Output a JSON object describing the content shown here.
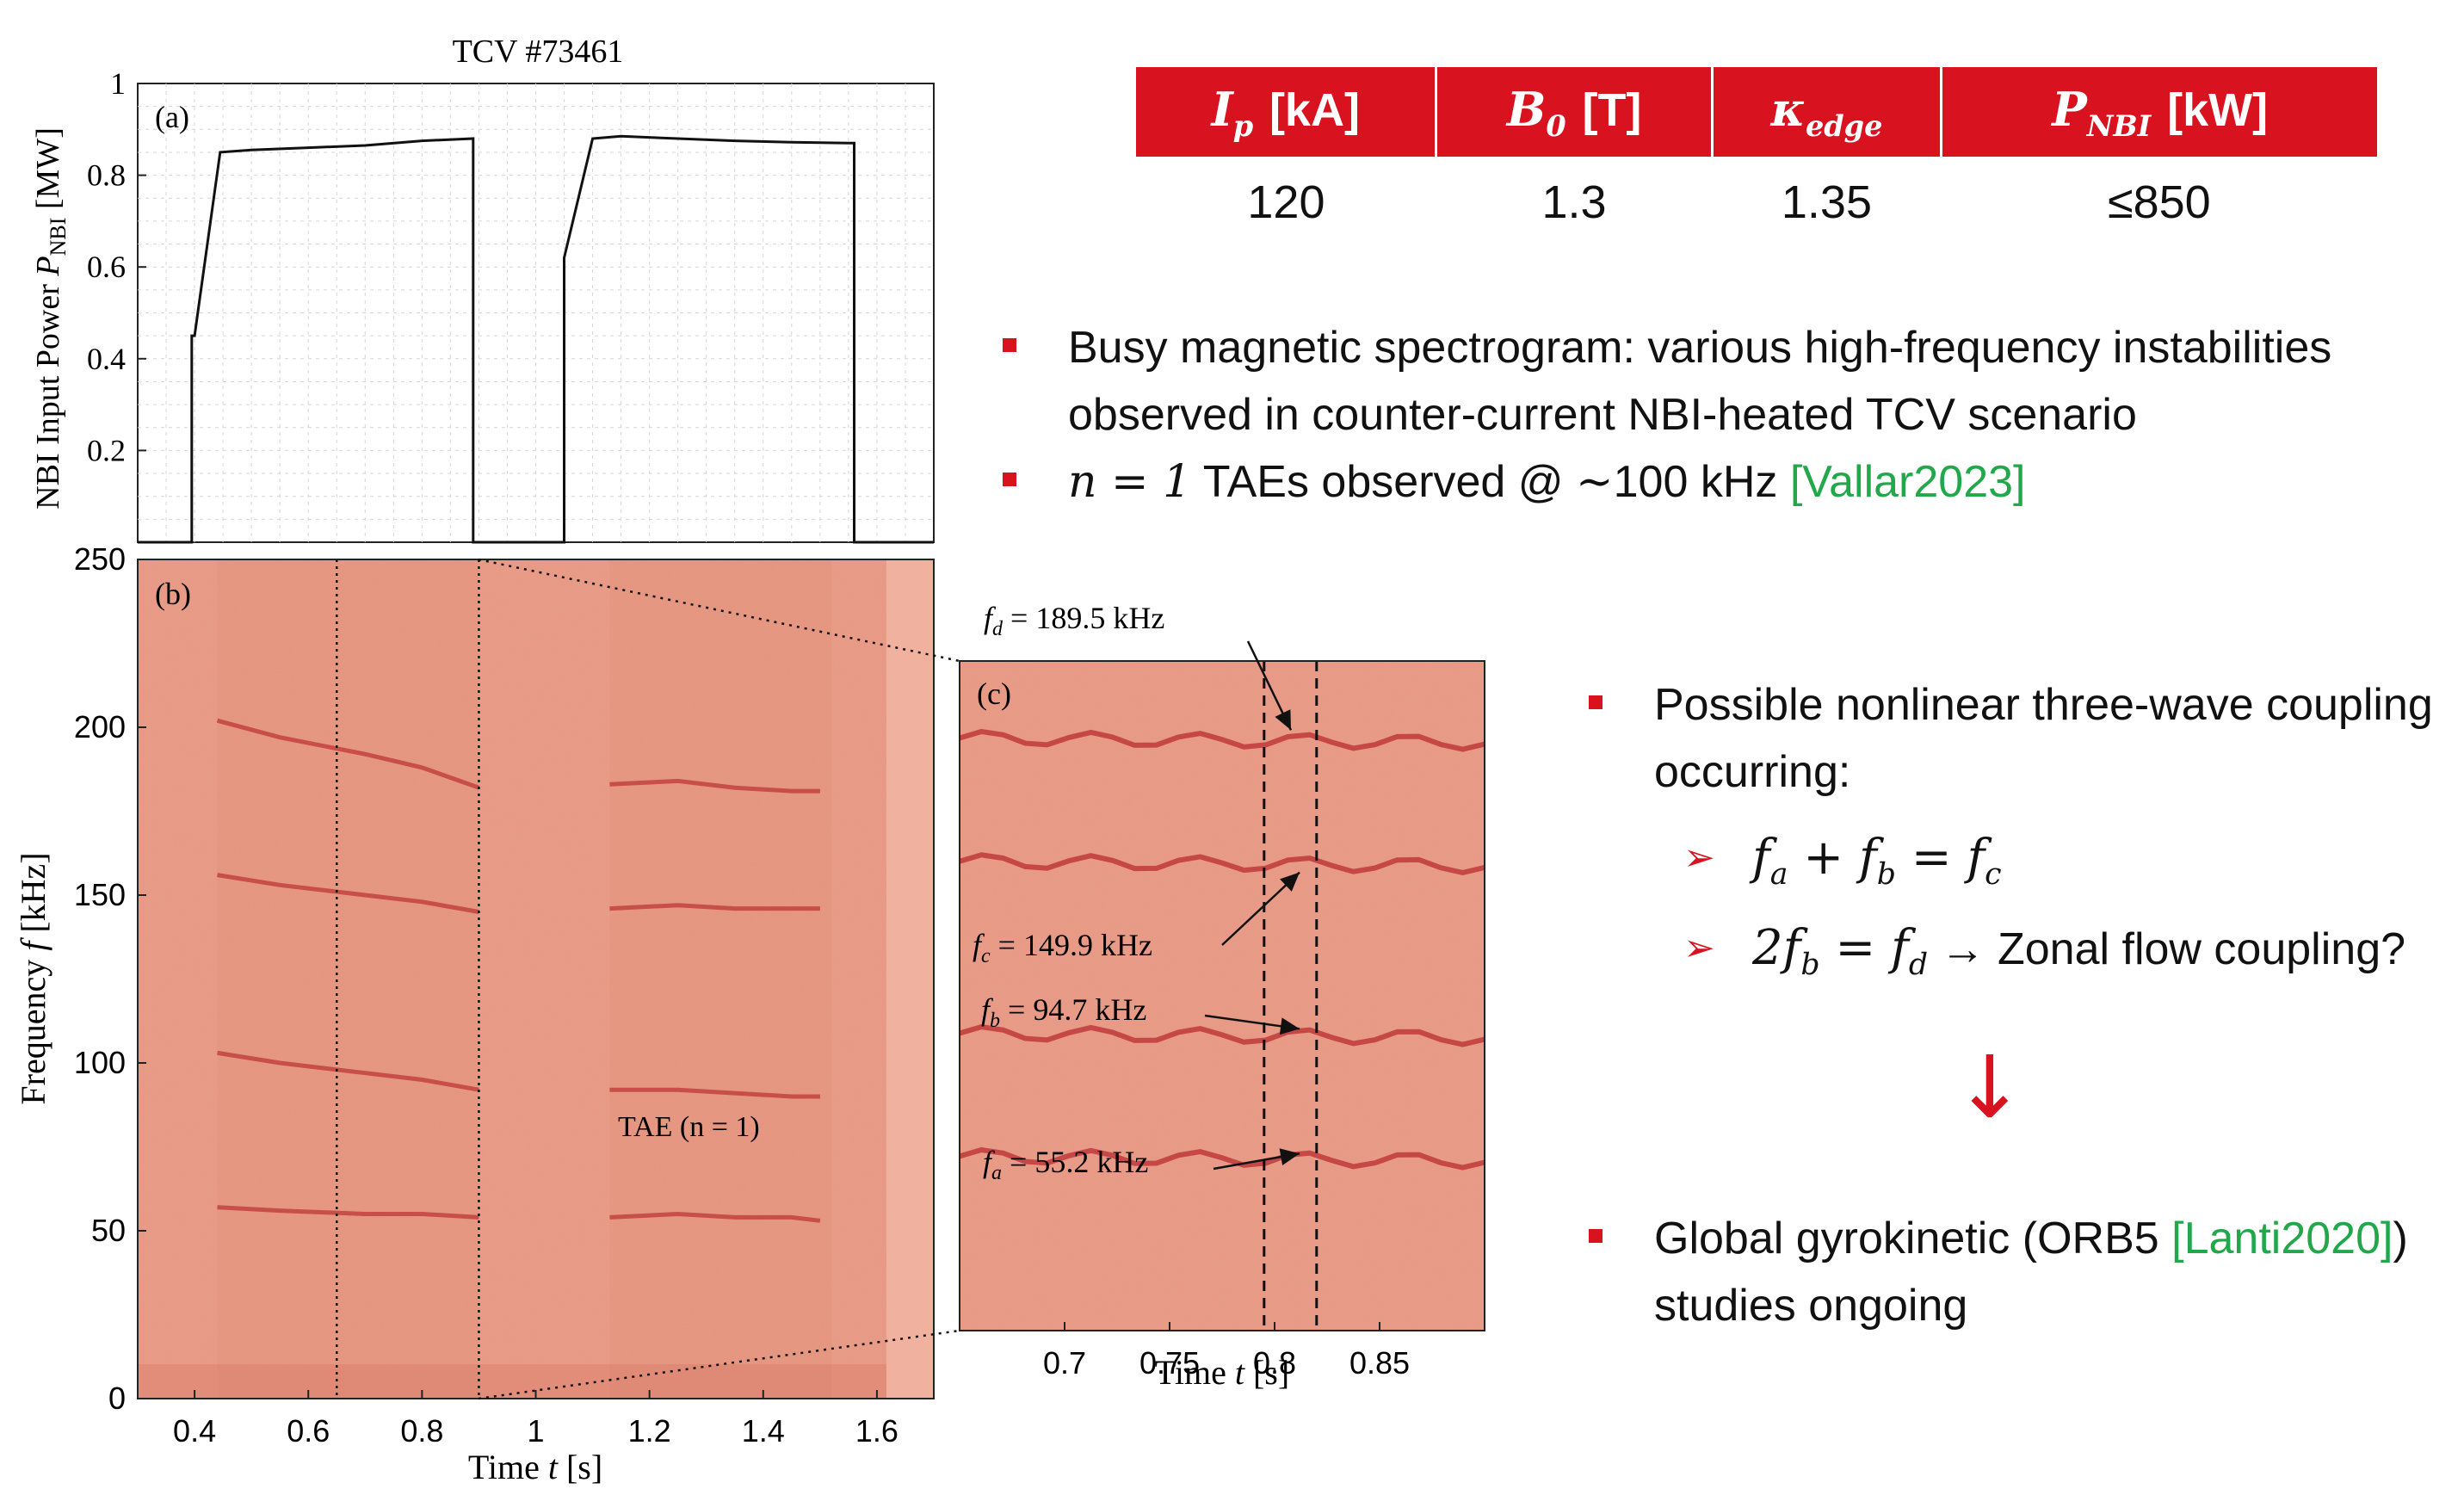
{
  "chart_data": [
    {
      "type": "line",
      "panel": "(a)",
      "title": "TCV #73461",
      "xlabel": "",
      "ylabel_prefix": "NBI Input Power",
      "ylabel_symbol": "P",
      "ylabel_subscript": "NBI",
      "ylabel_unit": "[MW]",
      "xlim": [
        0.3,
        1.7
      ],
      "ylim": [
        0,
        1
      ],
      "yticks": [
        "1",
        "0.8",
        "0.6",
        "0.4",
        "0.2"
      ],
      "grid": true,
      "series": [
        {
          "x": [
            0.3,
            0.395,
            0.395,
            0.4,
            0.445,
            0.5,
            0.6,
            0.7,
            0.8,
            0.89,
            0.89,
            0.95,
            0.95,
            1.0,
            1.05,
            1.05,
            1.1,
            1.15,
            1.25,
            1.35,
            1.45,
            1.55,
            1.56,
            1.56,
            1.7
          ],
          "y": [
            0,
            0,
            0.45,
            0.45,
            0.85,
            0.855,
            0.86,
            0.865,
            0.875,
            0.88,
            0,
            0,
            0,
            0,
            0,
            0.62,
            0.88,
            0.885,
            0.88,
            0.875,
            0.872,
            0.87,
            0.87,
            0,
            0
          ]
        }
      ]
    },
    {
      "type": "heatmap",
      "panel": "(b)",
      "xlabel_prefix": "Time",
      "xlabel_symbol": "t",
      "xlabel_unit": "[s]",
      "ylabel_prefix": "Frequency",
      "ylabel_symbol": "f",
      "ylabel_unit": "[kHz]",
      "xlim": [
        0.3,
        1.7
      ],
      "ylim": [
        0,
        250
      ],
      "xticks": [
        "0.4",
        "0.6",
        "0.8",
        "1",
        "1.2",
        "1.4",
        "1.6"
      ],
      "yticks": [
        "250",
        "200",
        "150",
        "100",
        "50",
        "0"
      ],
      "annotation": "TAE (n = 1)",
      "markers_x": [
        0.65,
        0.9
      ],
      "mode_traces": [
        {
          "x": [
            0.44,
            0.55,
            0.7,
            0.8,
            0.9
          ],
          "y": [
            202,
            197,
            192,
            188,
            182
          ]
        },
        {
          "x": [
            0.44,
            0.55,
            0.7,
            0.8,
            0.9
          ],
          "y": [
            156,
            153,
            150,
            148,
            145
          ]
        },
        {
          "x": [
            0.44,
            0.55,
            0.7,
            0.8,
            0.9
          ],
          "y": [
            103,
            100,
            97,
            95,
            92
          ]
        },
        {
          "x": [
            0.44,
            0.55,
            0.7,
            0.8,
            0.9
          ],
          "y": [
            57,
            56,
            55,
            55,
            54
          ]
        },
        {
          "x": [
            1.13,
            1.25,
            1.35,
            1.45,
            1.5
          ],
          "y": [
            183,
            184,
            182,
            181,
            181
          ]
        },
        {
          "x": [
            1.13,
            1.25,
            1.35,
            1.45,
            1.5
          ],
          "y": [
            146,
            147,
            146,
            146,
            146
          ]
        },
        {
          "x": [
            1.13,
            1.25,
            1.35,
            1.45,
            1.5
          ],
          "y": [
            92,
            92,
            91,
            90,
            90
          ]
        },
        {
          "x": [
            1.13,
            1.25,
            1.35,
            1.45,
            1.5
          ],
          "y": [
            54,
            55,
            54,
            54,
            53
          ]
        }
      ]
    },
    {
      "type": "heatmap",
      "panel": "(c)",
      "xlabel_prefix": "Time",
      "xlabel_symbol": "t",
      "xlabel_unit": "[s]",
      "xlim": [
        0.65,
        0.9
      ],
      "xticks": [
        "0.7",
        "0.75",
        "0.8",
        "0.85"
      ],
      "markers_x": [
        0.795,
        0.82
      ],
      "mode_traces": [
        {
          "label_sym": "f",
          "label_sub": "d",
          "label_val": "= 189.5 kHz",
          "y": 189.5
        },
        {
          "label_sym": "f",
          "label_sub": "c",
          "label_val": "= 149.9 kHz",
          "y": 149.9
        },
        {
          "label_sym": "f",
          "label_sub": "b",
          "label_val": "= 94.7 kHz",
          "y": 94.7
        },
        {
          "label_sym": "f",
          "label_sub": "a",
          "label_val": "= 55.2 kHz",
          "y": 55.2
        }
      ]
    }
  ],
  "table": {
    "headers": [
      {
        "sym": "I",
        "sub": "p",
        "unit": "[kA]"
      },
      {
        "sym": "B",
        "sub": "0",
        "unit": "[T]"
      },
      {
        "sym": "κ",
        "sub": "edge",
        "unit": ""
      },
      {
        "sym": "P",
        "sub": "NBI",
        "unit": "[kW]"
      }
    ],
    "values": [
      "120",
      "1.3",
      "1.35",
      "≤850"
    ]
  },
  "bullets_top": {
    "b1_line1": "Busy magnetic spectrogram: various high-frequency instabilities",
    "b1_line2": "observed in counter-current NBI-heated TCV scenario",
    "b2_math": "n = 1",
    "b2_text": " TAEs observed @ ",
    "b2_approx": "∼",
    "b2_freq": "100 kHz ",
    "b2_ref": "[Vallar2023]"
  },
  "bullets_right": {
    "b3_line1": "Possible nonlinear three-wave coupling",
    "b3_line2": "occurring:",
    "sub1_math": "f_a + f_b = f_c",
    "sub2_math": "2f_b = f_d",
    "sub2_text": " → Zonal flow coupling?",
    "down_arrow": "↓",
    "b4_text1": "Global gyrokinetic (ORB5 ",
    "b4_ref": "[Lanti2020]",
    "b4_text2": ")",
    "b4_line2": "studies ongoing"
  },
  "colors": {
    "accent_red": "#d9121f",
    "reference_green": "#22a84a",
    "spectrogram_bg": "#e99a84",
    "mode_line": "#c0393b"
  }
}
